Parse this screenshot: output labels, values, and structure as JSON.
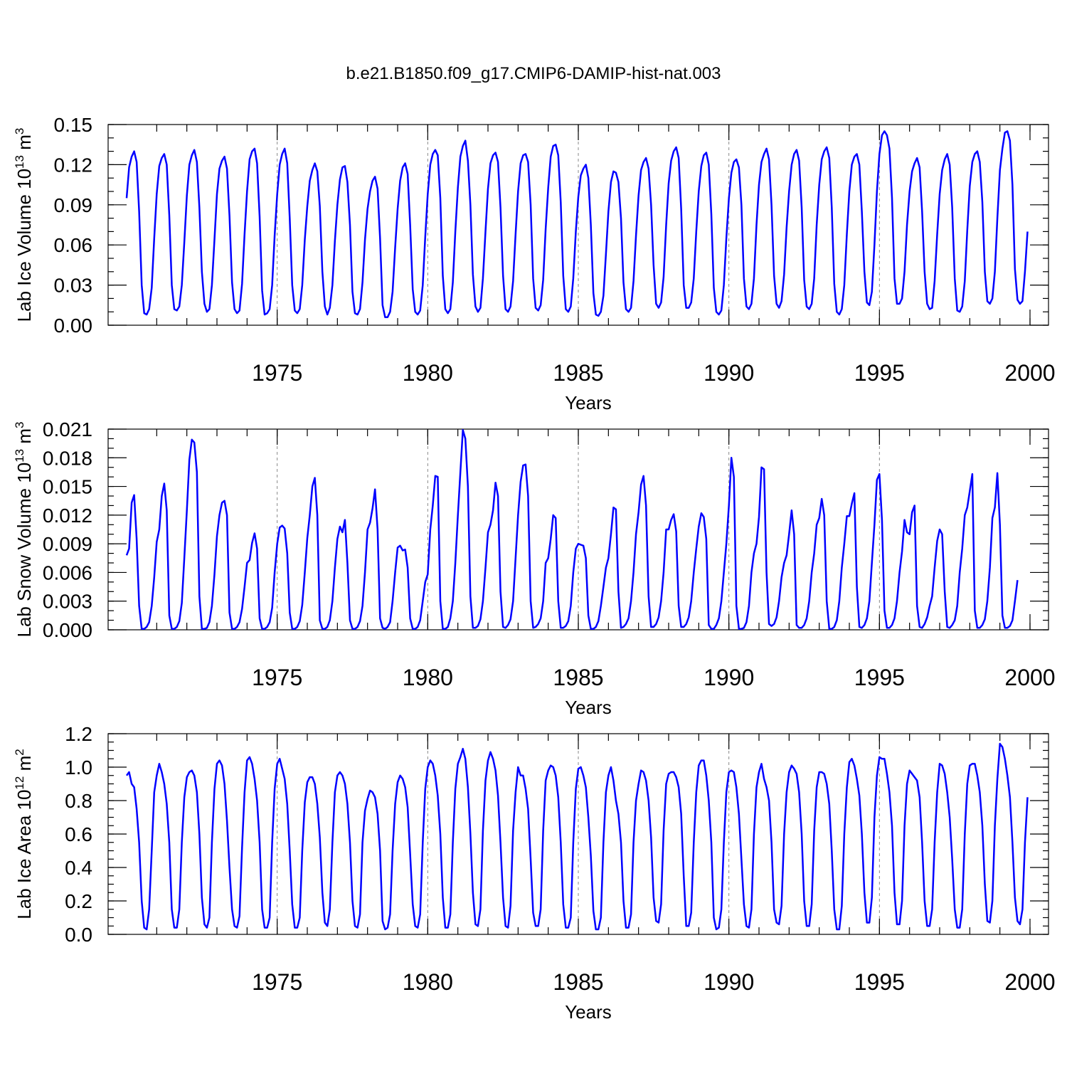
{
  "title": "b.e21.B1850.f09_g17.CMIP6-DAMIP-hist-nat.003",
  "colors": {
    "series": "#0000ff",
    "axes": "#000000",
    "grid": "#888888"
  },
  "chart_data": [
    {
      "type": "line",
      "ylabel_main": "Lab Ice Volume 10",
      "ylabel_exp": "13",
      "ylabel_unit": " m",
      "ylabel_unit_exp": "3",
      "xlabel": "Years",
      "xlim": [
        1970,
        2000
      ],
      "ylim": [
        0,
        0.15
      ],
      "xticks": [
        1975,
        1980,
        1985,
        1990,
        1995,
        2000
      ],
      "xtick_labels": [
        "1975",
        "1980",
        "1985",
        "1990",
        "1995",
        "2000"
      ],
      "yticks": [
        0,
        0.03,
        0.06,
        0.09,
        0.12,
        0.15
      ],
      "ytick_labels": [
        "0.00",
        "0.03",
        "0.06",
        "0.09",
        "0.12",
        "0.15"
      ],
      "yminor_step": 0.01,
      "grid_x": true,
      "x_start": 1970.0,
      "x_step": 0.0833333,
      "values": [
        0.095,
        0.118,
        0.126,
        0.13,
        0.122,
        0.085,
        0.03,
        0.009,
        0.008,
        0.012,
        0.028,
        0.065,
        0.098,
        0.119,
        0.125,
        0.128,
        0.12,
        0.082,
        0.03,
        0.012,
        0.011,
        0.014,
        0.03,
        0.062,
        0.097,
        0.12,
        0.127,
        0.131,
        0.122,
        0.088,
        0.04,
        0.016,
        0.01,
        0.012,
        0.03,
        0.064,
        0.098,
        0.117,
        0.123,
        0.126,
        0.117,
        0.082,
        0.032,
        0.012,
        0.009,
        0.011,
        0.031,
        0.068,
        0.1,
        0.124,
        0.13,
        0.132,
        0.121,
        0.081,
        0.026,
        0.008,
        0.009,
        0.012,
        0.03,
        0.067,
        0.098,
        0.12,
        0.128,
        0.132,
        0.121,
        0.08,
        0.03,
        0.011,
        0.009,
        0.012,
        0.03,
        0.064,
        0.089,
        0.108,
        0.116,
        0.121,
        0.115,
        0.089,
        0.04,
        0.014,
        0.008,
        0.013,
        0.03,
        0.063,
        0.09,
        0.109,
        0.118,
        0.119,
        0.107,
        0.075,
        0.025,
        0.009,
        0.008,
        0.012,
        0.032,
        0.064,
        0.087,
        0.1,
        0.108,
        0.111,
        0.102,
        0.065,
        0.015,
        0.006,
        0.006,
        0.01,
        0.025,
        0.058,
        0.087,
        0.108,
        0.118,
        0.121,
        0.113,
        0.075,
        0.027,
        0.01,
        0.008,
        0.011,
        0.03,
        0.066,
        0.098,
        0.12,
        0.128,
        0.131,
        0.127,
        0.095,
        0.037,
        0.012,
        0.009,
        0.012,
        0.032,
        0.07,
        0.103,
        0.126,
        0.134,
        0.138,
        0.123,
        0.09,
        0.038,
        0.014,
        0.01,
        0.013,
        0.035,
        0.07,
        0.102,
        0.121,
        0.127,
        0.129,
        0.122,
        0.088,
        0.037,
        0.012,
        0.01,
        0.014,
        0.033,
        0.068,
        0.1,
        0.121,
        0.127,
        0.128,
        0.122,
        0.09,
        0.035,
        0.013,
        0.011,
        0.015,
        0.034,
        0.072,
        0.103,
        0.126,
        0.134,
        0.135,
        0.127,
        0.092,
        0.037,
        0.012,
        0.01,
        0.014,
        0.035,
        0.07,
        0.096,
        0.112,
        0.117,
        0.12,
        0.11,
        0.075,
        0.024,
        0.008,
        0.007,
        0.01,
        0.022,
        0.053,
        0.085,
        0.107,
        0.115,
        0.114,
        0.107,
        0.08,
        0.032,
        0.012,
        0.01,
        0.013,
        0.033,
        0.067,
        0.097,
        0.116,
        0.122,
        0.125,
        0.117,
        0.09,
        0.045,
        0.016,
        0.013,
        0.017,
        0.036,
        0.075,
        0.106,
        0.123,
        0.13,
        0.133,
        0.125,
        0.087,
        0.03,
        0.013,
        0.013,
        0.017,
        0.035,
        0.07,
        0.1,
        0.119,
        0.127,
        0.129,
        0.12,
        0.083,
        0.028,
        0.01,
        0.008,
        0.011,
        0.03,
        0.065,
        0.095,
        0.114,
        0.122,
        0.124,
        0.118,
        0.09,
        0.035,
        0.014,
        0.012,
        0.016,
        0.035,
        0.075,
        0.105,
        0.122,
        0.128,
        0.132,
        0.124,
        0.09,
        0.037,
        0.016,
        0.013,
        0.018,
        0.038,
        0.073,
        0.1,
        0.12,
        0.128,
        0.131,
        0.123,
        0.088,
        0.034,
        0.014,
        0.012,
        0.016,
        0.035,
        0.075,
        0.105,
        0.124,
        0.13,
        0.133,
        0.125,
        0.088,
        0.031,
        0.01,
        0.008,
        0.012,
        0.03,
        0.068,
        0.1,
        0.12,
        0.126,
        0.128,
        0.12,
        0.085,
        0.04,
        0.017,
        0.015,
        0.025,
        0.06,
        0.1,
        0.128,
        0.142,
        0.145,
        0.142,
        0.132,
        0.095,
        0.035,
        0.016,
        0.016,
        0.02,
        0.04,
        0.075,
        0.1,
        0.115,
        0.121,
        0.125,
        0.118,
        0.085,
        0.04,
        0.016,
        0.012,
        0.013,
        0.033,
        0.068,
        0.098,
        0.116,
        0.124,
        0.128,
        0.12,
        0.088,
        0.035,
        0.011,
        0.01,
        0.014,
        0.033,
        0.071,
        0.104,
        0.122,
        0.128,
        0.13,
        0.122,
        0.092,
        0.04,
        0.018,
        0.016,
        0.02,
        0.04,
        0.08,
        0.116,
        0.132,
        0.144,
        0.145,
        0.138,
        0.105,
        0.042,
        0.019,
        0.016,
        0.018,
        0.04,
        0.07
      ]
    },
    {
      "type": "line",
      "ylabel_main": "Lab Snow Volume 10",
      "ylabel_exp": "13",
      "ylabel_unit": " m",
      "ylabel_unit_exp": "3",
      "xlabel": "Years",
      "xlim": [
        1970,
        2000
      ],
      "ylim": [
        0,
        0.021
      ],
      "xticks": [
        1975,
        1980,
        1985,
        1990,
        1995,
        2000
      ],
      "xtick_labels": [
        "1975",
        "1980",
        "1985",
        "1990",
        "1995",
        "2000"
      ],
      "yticks": [
        0,
        0.003,
        0.006,
        0.009,
        0.012,
        0.015,
        0.018,
        0.021
      ],
      "ytick_labels": [
        "0.000",
        "0.003",
        "0.006",
        "0.009",
        "0.012",
        "0.015",
        "0.018",
        "0.021"
      ],
      "yminor_step": 0.001,
      "grid_x": true,
      "x_start": 1970.0,
      "x_step": 0.0833333,
      "values": [
        0.0078,
        0.0085,
        0.0133,
        0.0141,
        0.0095,
        0.0025,
        0.0001,
        0.0001,
        0.0003,
        0.0008,
        0.0025,
        0.0055,
        0.0092,
        0.0105,
        0.014,
        0.0153,
        0.0125,
        0.0015,
        0.0001,
        0.0001,
        0.0003,
        0.0009,
        0.0028,
        0.0075,
        0.0125,
        0.0178,
        0.0199,
        0.0196,
        0.0165,
        0.0035,
        0.0001,
        0.0001,
        0.0002,
        0.0008,
        0.0025,
        0.0058,
        0.0098,
        0.012,
        0.0133,
        0.0135,
        0.012,
        0.0018,
        0.0001,
        0.0001,
        0.0003,
        0.0008,
        0.0022,
        0.0045,
        0.007,
        0.0073,
        0.0091,
        0.0101,
        0.0085,
        0.0012,
        0.0001,
        0.0001,
        0.0003,
        0.0008,
        0.0023,
        0.006,
        0.009,
        0.0107,
        0.0109,
        0.0106,
        0.008,
        0.0018,
        0.0001,
        0.0001,
        0.0003,
        0.0009,
        0.0026,
        0.006,
        0.0096,
        0.012,
        0.015,
        0.0159,
        0.012,
        0.001,
        0.0001,
        0.0001,
        0.0003,
        0.001,
        0.003,
        0.0065,
        0.0095,
        0.0108,
        0.0102,
        0.0115,
        0.007,
        0.001,
        0.0001,
        0.0001,
        0.0003,
        0.0009,
        0.0025,
        0.006,
        0.0105,
        0.0112,
        0.0127,
        0.0147,
        0.0105,
        0.0012,
        0.0002,
        0.0001,
        0.0003,
        0.0008,
        0.003,
        0.006,
        0.0086,
        0.0088,
        0.0083,
        0.0084,
        0.0065,
        0.0012,
        0.0001,
        0.0001,
        0.0003,
        0.001,
        0.003,
        0.005,
        0.0058,
        0.0105,
        0.013,
        0.0161,
        0.016,
        0.003,
        0.0001,
        0.0001,
        0.0003,
        0.0012,
        0.003,
        0.007,
        0.012,
        0.0165,
        0.0209,
        0.02,
        0.015,
        0.0035,
        0.0002,
        0.0002,
        0.0004,
        0.0011,
        0.003,
        0.0065,
        0.0102,
        0.011,
        0.0125,
        0.0154,
        0.014,
        0.004,
        0.0003,
        0.0002,
        0.0005,
        0.0011,
        0.003,
        0.0075,
        0.012,
        0.0155,
        0.0172,
        0.0173,
        0.014,
        0.003,
        0.0002,
        0.0003,
        0.0006,
        0.0012,
        0.003,
        0.007,
        0.0075,
        0.0095,
        0.012,
        0.0117,
        0.003,
        0.0002,
        0.0002,
        0.0004,
        0.0009,
        0.0025,
        0.006,
        0.0085,
        0.009,
        0.0089,
        0.0088,
        0.0075,
        0.0015,
        0.0001,
        0.0001,
        0.0003,
        0.0009,
        0.0025,
        0.0045,
        0.0065,
        0.0075,
        0.01,
        0.0128,
        0.0126,
        0.004,
        0.0002,
        0.0003,
        0.0006,
        0.0012,
        0.003,
        0.006,
        0.01,
        0.0123,
        0.0152,
        0.0161,
        0.013,
        0.0035,
        0.0003,
        0.0003,
        0.0006,
        0.0013,
        0.003,
        0.006,
        0.0105,
        0.0105,
        0.0115,
        0.0121,
        0.0103,
        0.0025,
        0.0003,
        0.0003,
        0.0006,
        0.0013,
        0.003,
        0.006,
        0.0085,
        0.0108,
        0.0122,
        0.0118,
        0.0095,
        0.0005,
        0.0001,
        0.0001,
        0.0005,
        0.0012,
        0.003,
        0.006,
        0.009,
        0.013,
        0.018,
        0.016,
        0.0025,
        0.0001,
        0.0001,
        0.0002,
        0.0008,
        0.0025,
        0.006,
        0.008,
        0.009,
        0.0118,
        0.017,
        0.0168,
        0.006,
        0.0006,
        0.0004,
        0.0006,
        0.0013,
        0.003,
        0.0055,
        0.007,
        0.0078,
        0.01,
        0.0125,
        0.01,
        0.0005,
        0.0002,
        0.0002,
        0.0005,
        0.0012,
        0.003,
        0.006,
        0.008,
        0.011,
        0.0117,
        0.0137,
        0.012,
        0.003,
        0.0001,
        0.0001,
        0.0003,
        0.001,
        0.003,
        0.0065,
        0.009,
        0.0119,
        0.0119,
        0.0132,
        0.0143,
        0.0045,
        0.0003,
        0.0002,
        0.0005,
        0.0012,
        0.003,
        0.007,
        0.011,
        0.0157,
        0.0163,
        0.0115,
        0.002,
        0.0002,
        0.0002,
        0.0005,
        0.0012,
        0.003,
        0.006,
        0.0082,
        0.0115,
        0.0102,
        0.01,
        0.0123,
        0.013,
        0.0025,
        0.0003,
        0.0002,
        0.0006,
        0.0013,
        0.0025,
        0.0035,
        0.0065,
        0.0093,
        0.0105,
        0.01,
        0.004,
        0.0003,
        0.0002,
        0.0005,
        0.001,
        0.0025,
        0.006,
        0.0085,
        0.012,
        0.0128,
        0.0145,
        0.0163,
        0.002,
        0.0002,
        0.0002,
        0.0005,
        0.0011,
        0.003,
        0.0065,
        0.0117,
        0.0128,
        0.0164,
        0.011,
        0.0015,
        0.0002,
        0.0002,
        0.0004,
        0.001,
        0.003,
        0.0052
      ]
    },
    {
      "type": "line",
      "ylabel_main": "Lab Ice Area 10",
      "ylabel_exp": "12",
      "ylabel_unit": " m",
      "ylabel_unit_exp": "2",
      "xlabel": "Years",
      "xlim": [
        1970,
        2000
      ],
      "ylim": [
        0,
        1.2
      ],
      "xticks": [
        1975,
        1980,
        1985,
        1990,
        1995,
        2000
      ],
      "xtick_labels": [
        "1975",
        "1980",
        "1985",
        "1990",
        "1995",
        "2000"
      ],
      "yticks": [
        0,
        0.2,
        0.4,
        0.6,
        0.8,
        1.0,
        1.2
      ],
      "ytick_labels": [
        "0.0",
        "0.2",
        "0.4",
        "0.6",
        "0.8",
        "1.0",
        "1.2"
      ],
      "yminor_step": 0.05,
      "grid_x": true,
      "x_start": 1970.0,
      "x_step": 0.0833333,
      "values": [
        0.95,
        0.97,
        0.9,
        0.88,
        0.75,
        0.55,
        0.2,
        0.04,
        0.03,
        0.15,
        0.5,
        0.85,
        0.95,
        1.02,
        0.97,
        0.9,
        0.78,
        0.55,
        0.15,
        0.04,
        0.04,
        0.15,
        0.55,
        0.82,
        0.94,
        0.97,
        0.98,
        0.95,
        0.85,
        0.6,
        0.22,
        0.06,
        0.04,
        0.1,
        0.55,
        0.87,
        1.02,
        1.04,
        1.01,
        0.9,
        0.68,
        0.4,
        0.15,
        0.05,
        0.04,
        0.11,
        0.52,
        0.85,
        1.04,
        1.06,
        1.02,
        0.93,
        0.8,
        0.55,
        0.15,
        0.04,
        0.04,
        0.1,
        0.55,
        0.87,
        1.02,
        1.05,
        0.99,
        0.93,
        0.78,
        0.5,
        0.18,
        0.04,
        0.04,
        0.1,
        0.5,
        0.79,
        0.91,
        0.94,
        0.94,
        0.9,
        0.78,
        0.58,
        0.25,
        0.07,
        0.05,
        0.15,
        0.55,
        0.85,
        0.95,
        0.97,
        0.95,
        0.9,
        0.78,
        0.55,
        0.2,
        0.05,
        0.04,
        0.12,
        0.55,
        0.74,
        0.81,
        0.86,
        0.85,
        0.82,
        0.72,
        0.5,
        0.08,
        0.03,
        0.04,
        0.12,
        0.5,
        0.78,
        0.91,
        0.95,
        0.93,
        0.88,
        0.76,
        0.48,
        0.18,
        0.05,
        0.04,
        0.12,
        0.55,
        0.87,
        1.0,
        1.04,
        1.02,
        0.95,
        0.83,
        0.6,
        0.22,
        0.04,
        0.04,
        0.12,
        0.55,
        0.87,
        1.02,
        1.06,
        1.11,
        1.05,
        0.88,
        0.6,
        0.25,
        0.06,
        0.05,
        0.15,
        0.62,
        0.92,
        1.04,
        1.09,
        1.05,
        0.98,
        0.83,
        0.55,
        0.22,
        0.05,
        0.04,
        0.17,
        0.62,
        0.85,
        1.0,
        0.95,
        0.95,
        0.87,
        0.75,
        0.45,
        0.13,
        0.05,
        0.05,
        0.15,
        0.62,
        0.92,
        0.98,
        1.01,
        1.0,
        0.95,
        0.82,
        0.55,
        0.18,
        0.04,
        0.04,
        0.1,
        0.55,
        0.87,
        0.99,
        1.0,
        0.95,
        0.88,
        0.7,
        0.47,
        0.14,
        0.03,
        0.03,
        0.1,
        0.55,
        0.85,
        0.95,
        1.0,
        0.92,
        0.8,
        0.72,
        0.55,
        0.2,
        0.04,
        0.04,
        0.12,
        0.55,
        0.8,
        0.9,
        0.98,
        0.97,
        0.92,
        0.8,
        0.58,
        0.22,
        0.08,
        0.07,
        0.18,
        0.62,
        0.9,
        0.96,
        0.97,
        0.97,
        0.94,
        0.88,
        0.72,
        0.35,
        0.05,
        0.05,
        0.13,
        0.55,
        0.85,
        1.01,
        1.04,
        1.04,
        0.95,
        0.8,
        0.55,
        0.1,
        0.03,
        0.04,
        0.15,
        0.55,
        0.85,
        0.97,
        0.98,
        0.97,
        0.88,
        0.72,
        0.45,
        0.18,
        0.05,
        0.04,
        0.15,
        0.6,
        0.88,
        0.97,
        1.02,
        0.93,
        0.88,
        0.8,
        0.55,
        0.15,
        0.07,
        0.06,
        0.17,
        0.6,
        0.85,
        0.97,
        1.01,
        0.99,
        0.96,
        0.85,
        0.6,
        0.2,
        0.05,
        0.05,
        0.18,
        0.62,
        0.88,
        0.97,
        0.97,
        0.96,
        0.9,
        0.78,
        0.5,
        0.15,
        0.03,
        0.03,
        0.17,
        0.6,
        0.88,
        1.03,
        1.05,
        1.01,
        0.93,
        0.83,
        0.6,
        0.25,
        0.07,
        0.07,
        0.22,
        0.7,
        0.95,
        1.06,
        1.05,
        1.05,
        0.96,
        0.85,
        0.65,
        0.25,
        0.06,
        0.06,
        0.2,
        0.65,
        0.9,
        0.98,
        0.96,
        0.94,
        0.92,
        0.82,
        0.55,
        0.2,
        0.05,
        0.05,
        0.15,
        0.55,
        0.85,
        1.02,
        1.01,
        0.96,
        0.85,
        0.7,
        0.45,
        0.15,
        0.04,
        0.04,
        0.15,
        0.6,
        0.9,
        1.01,
        1.02,
        1.02,
        0.95,
        0.85,
        0.65,
        0.3,
        0.08,
        0.07,
        0.2,
        0.65,
        0.93,
        1.14,
        1.12,
        1.05,
        0.95,
        0.82,
        0.55,
        0.22,
        0.08,
        0.06,
        0.15,
        0.55,
        0.82
      ]
    }
  ]
}
